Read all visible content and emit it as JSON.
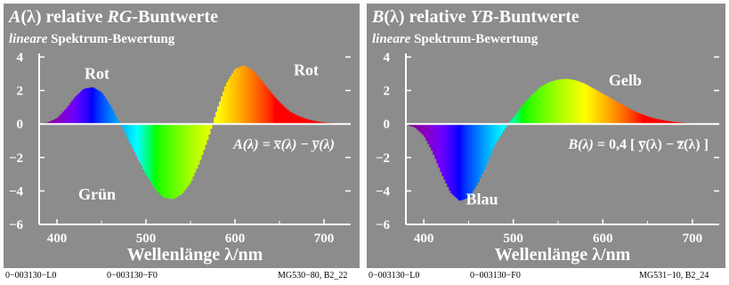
{
  "chart_data": [
    {
      "type": "area",
      "title_prefix": "A",
      "title_rest": "(λ) relative",
      "title_italic": "RG",
      "title_suffix": "-Buntwerte",
      "subtitle_italic": "lineare",
      "subtitle_rest": "Spektrum-Bewertung",
      "xlabel": "Wellenlänge λ/nm",
      "xlim": [
        380,
        730
      ],
      "ylim": [
        -6,
        4
      ],
      "xticks": [
        400,
        500,
        600,
        700
      ],
      "yticks": [
        4,
        2,
        0,
        -2,
        -4,
        -6
      ],
      "x": [
        380,
        390,
        400,
        410,
        420,
        430,
        440,
        450,
        460,
        470,
        480,
        490,
        500,
        510,
        520,
        530,
        540,
        550,
        560,
        570,
        580,
        590,
        600,
        610,
        620,
        630,
        640,
        650,
        660,
        670,
        680,
        690,
        700,
        710,
        720,
        730
      ],
      "y": [
        0.02,
        0.1,
        0.35,
        0.9,
        1.6,
        2.1,
        2.2,
        1.9,
        1.1,
        0.1,
        -0.9,
        -2.0,
        -3.0,
        -3.9,
        -4.4,
        -4.5,
        -4.2,
        -3.5,
        -2.3,
        -0.8,
        0.9,
        2.4,
        3.3,
        3.5,
        3.2,
        2.6,
        1.9,
        1.3,
        0.8,
        0.5,
        0.3,
        0.17,
        0.09,
        0.05,
        0.02,
        0.01
      ],
      "annotations": [
        {
          "text": "Rot",
          "x": 445,
          "y": 2.7
        },
        {
          "text": "Rot",
          "x": 680,
          "y": 2.9
        },
        {
          "text": "Grün",
          "x": 445,
          "y": -4.5
        }
      ],
      "formula": {
        "lhs": "A(λ)",
        "rhs": "= x̅(λ) − y̅(λ)"
      },
      "footer": {
        "left1": "0−003130−L0",
        "left2": "0−003130−F0",
        "right": "MG530−80, B2_22"
      }
    },
    {
      "type": "area",
      "title_prefix": "B",
      "title_rest": "(λ) relative",
      "title_italic": "YB",
      "title_suffix": "-Buntwerte",
      "subtitle_italic": "lineare",
      "subtitle_rest": "Spektrum-Bewertung",
      "xlabel": "Wellenlänge λ/nm",
      "xlim": [
        380,
        730
      ],
      "ylim": [
        -6,
        4
      ],
      "xticks": [
        400,
        500,
        600,
        700
      ],
      "yticks": [
        4,
        2,
        0,
        -2,
        -4,
        -6
      ],
      "x": [
        380,
        390,
        400,
        410,
        420,
        430,
        440,
        450,
        460,
        470,
        480,
        490,
        500,
        510,
        520,
        530,
        540,
        550,
        560,
        570,
        580,
        590,
        600,
        610,
        620,
        630,
        640,
        650,
        660,
        670,
        680,
        690,
        700,
        710,
        720,
        730
      ],
      "y": [
        -0.05,
        -0.2,
        -0.7,
        -1.7,
        -3.0,
        -4.1,
        -4.6,
        -4.4,
        -3.6,
        -2.4,
        -1.2,
        -0.3,
        0.4,
        1.1,
        1.7,
        2.2,
        2.5,
        2.65,
        2.7,
        2.6,
        2.4,
        2.1,
        1.8,
        1.5,
        1.2,
        0.9,
        0.65,
        0.45,
        0.3,
        0.2,
        0.12,
        0.07,
        0.04,
        0.02,
        0.01,
        0.0
      ],
      "annotations": [
        {
          "text": "Gelb",
          "x": 625,
          "y": 2.3
        },
        {
          "text": "Blau",
          "x": 465,
          "y": -4.8
        }
      ],
      "formula": {
        "lhs": "B(λ)",
        "rhs": "= 0,4 [ y̅(λ) − z̅(λ) ]"
      },
      "footer": {
        "left1": "0−003130−L0",
        "left2": "0−003130−F0",
        "right": "MG531−10, B2_24"
      }
    }
  ]
}
